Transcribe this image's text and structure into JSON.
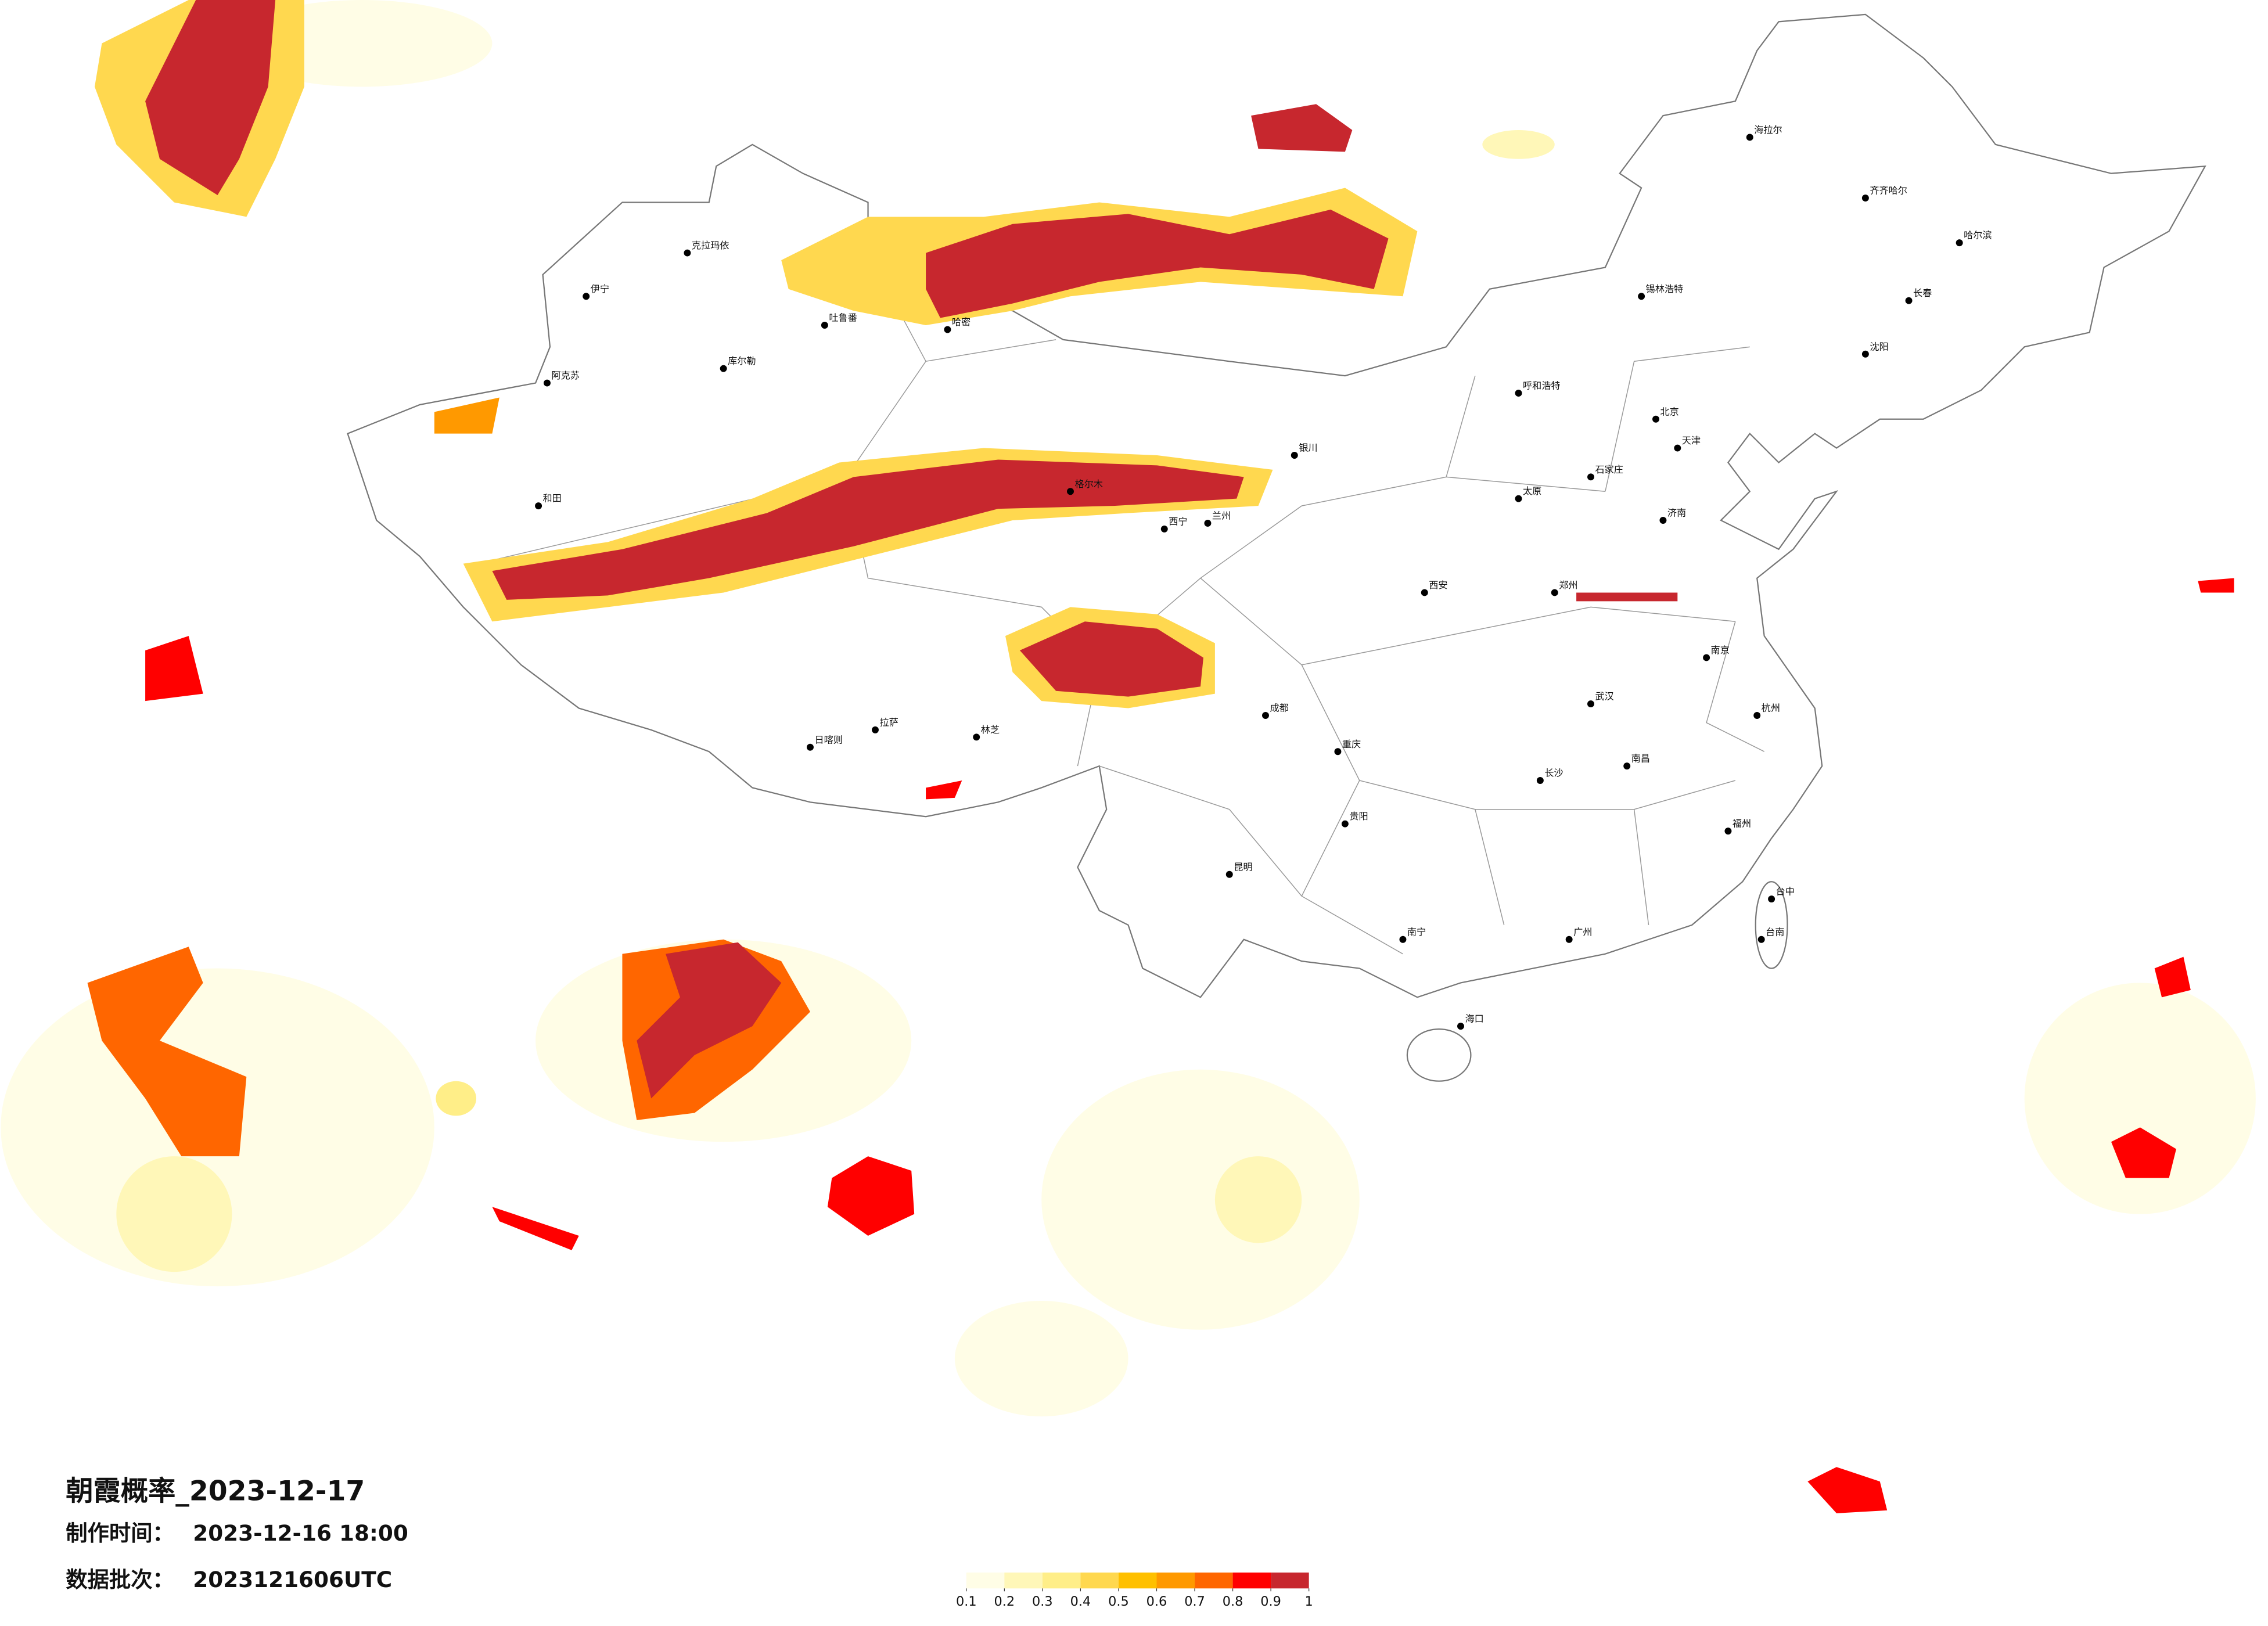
{
  "footer": {
    "title": "朝霞概率_2023-12-17",
    "lines": [
      {
        "label": "制作时间：",
        "value": "2023-12-16 18:00"
      },
      {
        "label": "数据批次：",
        "value": "2023121606UTC"
      }
    ]
  },
  "legend": {
    "colors": [
      "#fffde6",
      "#fff7b8",
      "#ffee88",
      "#ffd84f",
      "#ffc000",
      "#ff9900",
      "#ff6600",
      "#ff0000",
      "#c7272e"
    ],
    "ticks": [
      0.1,
      0.2,
      0.3,
      0.4,
      0.5,
      0.6,
      0.7,
      0.8,
      0.9,
      1
    ]
  },
  "cities": [
    "克拉玛依",
    "伊宁",
    "库尔勒",
    "阿克苏",
    "和田",
    "哈密",
    "吐鲁番",
    "格尔木",
    "拉萨",
    "日喀则",
    "林芝",
    "海拉尔",
    "齐齐哈尔",
    "哈尔滨",
    "长春",
    "沈阳",
    "锡林浩特",
    "呼和浩特",
    "北京",
    "天津",
    "石家庄",
    "太原",
    "济南",
    "郑州",
    "西安",
    "兰州",
    "西宁",
    "银川",
    "成都",
    "重庆",
    "武汉",
    "南京",
    "杭州",
    "长沙",
    "南昌",
    "福州",
    "贵阳",
    "昆明",
    "南宁",
    "广州",
    "海口",
    "台中",
    "台南"
  ]
}
